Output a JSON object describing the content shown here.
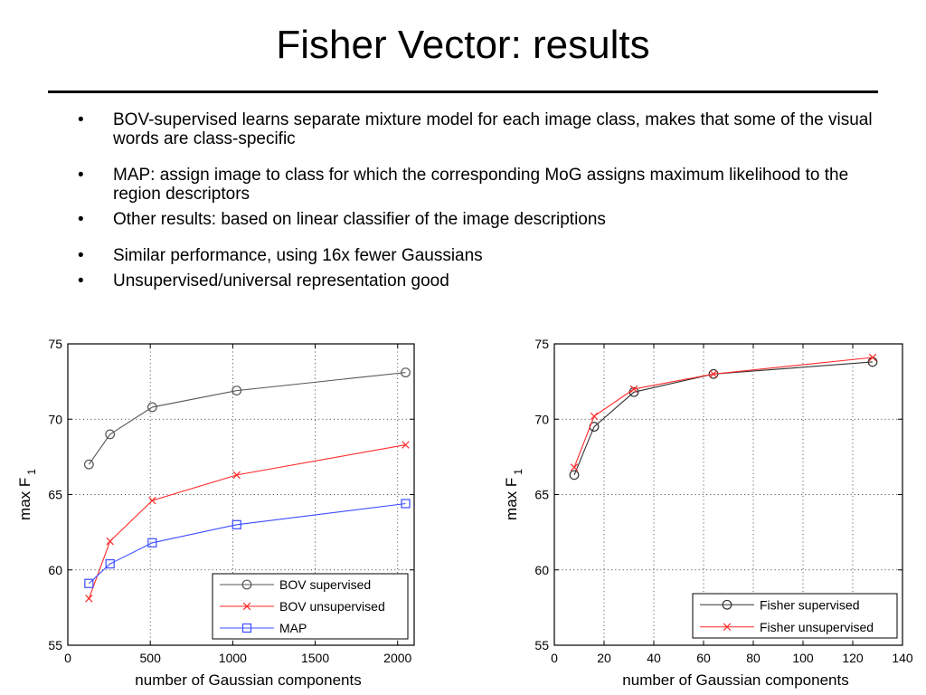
{
  "slide": {
    "title": "Fisher Vector: results",
    "bullets": [
      {
        "text": "BOV-supervised learns separate mixture model for each image class, makes that some of the visual words are class-specific",
        "spacing": "first"
      },
      {
        "text": "MAP: assign image to class for which the corresponding MoG assigns maximum likelihood to the region descriptors",
        "spacing": "gap"
      },
      {
        "text": "Other results: based on linear classifier of the image descriptions",
        "spacing": "tight"
      },
      {
        "text": "Similar performance, using 16x fewer Gaussians",
        "spacing": "gap"
      },
      {
        "text": "Unsupervised/universal representation good",
        "spacing": "tight"
      }
    ],
    "bullet_glyph": "•"
  },
  "chart_data": [
    {
      "type": "line",
      "xlabel": "number of Gaussian components",
      "ylabel": "max F",
      "ylabel_subscript": "1",
      "xlim": [
        0,
        2100
      ],
      "ylim": [
        55,
        75
      ],
      "xticks": [
        0,
        500,
        1000,
        1500,
        2000
      ],
      "yticks": [
        55,
        60,
        65,
        70,
        75
      ],
      "grid": true,
      "legend_position": "bottom-right",
      "series": [
        {
          "name": "BOV supervised",
          "color": "#555555",
          "marker": "circle",
          "x": [
            128,
            256,
            512,
            1024,
            2048
          ],
          "y": [
            67.0,
            69.0,
            70.8,
            71.9,
            73.1
          ]
        },
        {
          "name": "BOV unsupervised",
          "color": "#ff2a2a",
          "marker": "x",
          "x": [
            128,
            256,
            512,
            1024,
            2048
          ],
          "y": [
            58.1,
            61.9,
            64.6,
            66.3,
            68.3
          ]
        },
        {
          "name": "MAP",
          "color": "#3b4cff",
          "marker": "square",
          "x": [
            128,
            256,
            512,
            1024,
            2048
          ],
          "y": [
            59.1,
            60.4,
            61.8,
            63.0,
            64.4
          ]
        }
      ]
    },
    {
      "type": "line",
      "xlabel": "number of Gaussian components",
      "ylabel": "max F",
      "ylabel_subscript": "1",
      "xlim": [
        0,
        140
      ],
      "ylim": [
        55,
        75
      ],
      "xticks": [
        0,
        20,
        40,
        60,
        80,
        100,
        120,
        140
      ],
      "yticks": [
        55,
        60,
        65,
        70,
        75
      ],
      "grid": true,
      "legend_position": "bottom-right",
      "series": [
        {
          "name": "Fisher supervised",
          "color": "#333333",
          "marker": "circle",
          "x": [
            8,
            16,
            32,
            64,
            128
          ],
          "y": [
            66.3,
            69.5,
            71.8,
            73.0,
            73.8
          ]
        },
        {
          "name": "Fisher unsupervised",
          "color": "#ff2a2a",
          "marker": "x",
          "x": [
            8,
            16,
            32,
            64,
            128
          ],
          "y": [
            66.8,
            70.2,
            72.0,
            73.0,
            74.1
          ]
        }
      ]
    }
  ]
}
